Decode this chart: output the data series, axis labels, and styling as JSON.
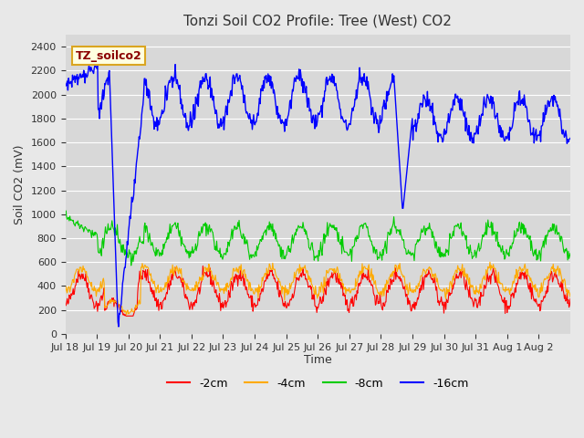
{
  "title": "Tonzi Soil CO2 Profile: Tree (West) CO2",
  "ylabel": "Soil CO2 (mV)",
  "xlabel": "Time",
  "ylim": [
    0,
    2500
  ],
  "yticks": [
    0,
    200,
    400,
    600,
    800,
    1000,
    1200,
    1400,
    1600,
    1800,
    2000,
    2200,
    2400
  ],
  "xtick_labels": [
    "Jul 18",
    "Jul 19",
    "Jul 20",
    "Jul 21",
    "Jul 22",
    "Jul 23",
    "Jul 24",
    "Jul 25",
    "Jul 26",
    "Jul 27",
    "Jul 28",
    "Jul 29",
    "Jul 30",
    "Jul 31",
    "Aug 1",
    "Aug 2"
  ],
  "legend_label": "TZ_soilco2",
  "legend_entries": [
    "-2cm",
    "-4cm",
    "-8cm",
    "-16cm"
  ],
  "line_colors": [
    "#ff0000",
    "#ffaa00",
    "#00cc00",
    "#0000ff"
  ],
  "bg_color": "#e8e8e8",
  "plot_bg_color": "#d8d8d8",
  "title_color": "#333333",
  "label_color": "#333333"
}
